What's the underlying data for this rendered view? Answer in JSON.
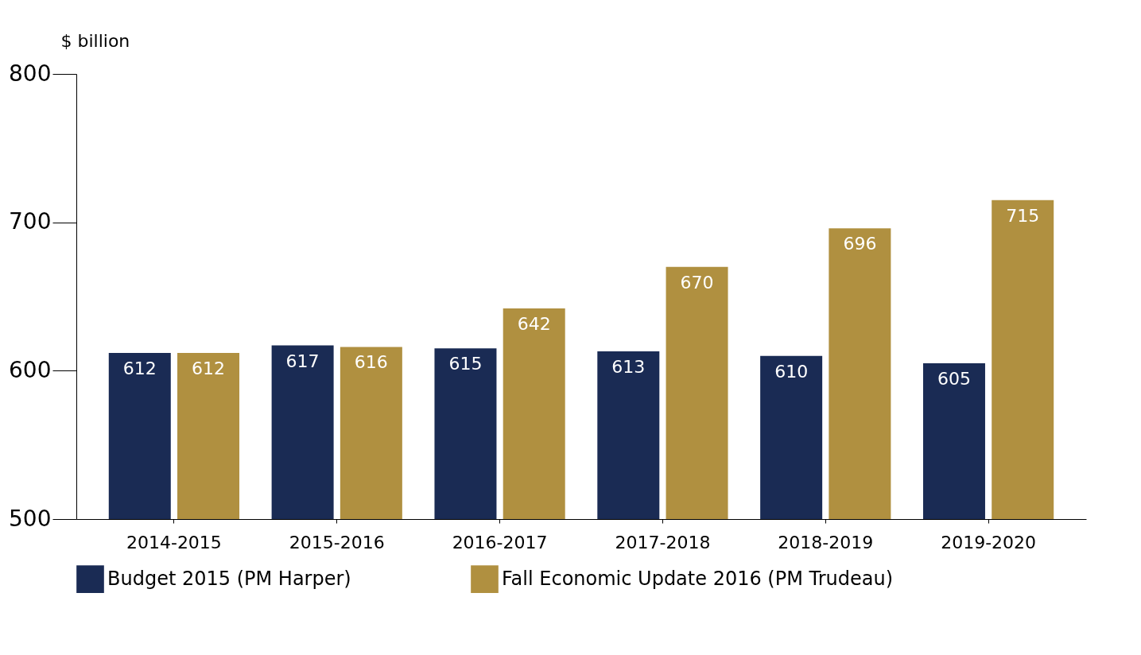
{
  "chart_data": {
    "type": "bar",
    "ylabel": "$ billion",
    "categories": [
      "2014-2015",
      "2015-2016",
      "2016-2017",
      "2017-2018",
      "2018-2019",
      "2019-2020"
    ],
    "series": [
      {
        "name": "Budget 2015 (PM Harper)",
        "color": "#1a2b54",
        "values": [
          612,
          617,
          615,
          613,
          610,
          605
        ]
      },
      {
        "name": "Fall Economic Update 2016 (PM Trudeau)",
        "color": "#b09040",
        "values": [
          612,
          616,
          642,
          670,
          696,
          715
        ]
      }
    ],
    "ylim": [
      500,
      800
    ],
    "yticks": [
      500,
      600,
      700,
      800
    ],
    "grid": false,
    "legend": "bottom",
    "data_labels": true
  }
}
